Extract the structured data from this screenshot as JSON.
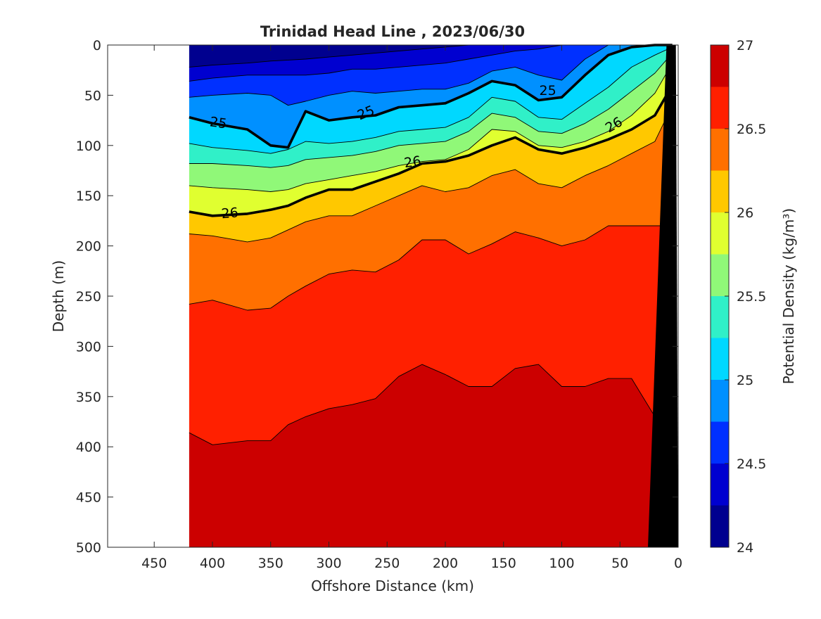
{
  "chart_data": {
    "type": "heatmap",
    "subtype": "filled-contour",
    "title": "Trinidad Head Line , 2023/06/30",
    "xlabel": "Offshore Distance (km)",
    "ylabel": "Depth (m)",
    "colorbar_label": "Potential Density (kg/m³)",
    "x_reversed": true,
    "y_reversed": true,
    "xlim": [
      0,
      490
    ],
    "ylim": [
      0,
      500
    ],
    "x_ticks": [
      450,
      400,
      350,
      300,
      250,
      200,
      150,
      100,
      50,
      0
    ],
    "x_tick_labels": [
      "450",
      "400",
      "350",
      "300",
      "250",
      "200",
      "150",
      "100",
      "50",
      "0"
    ],
    "y_ticks": [
      0,
      50,
      100,
      150,
      200,
      250,
      300,
      350,
      400,
      450,
      500
    ],
    "y_tick_labels": [
      "0",
      "50",
      "100",
      "150",
      "200",
      "250",
      "300",
      "350",
      "400",
      "450",
      "500"
    ],
    "colorbar": {
      "min": 24,
      "max": 27,
      "step": 0.25,
      "ticks": [
        24,
        24.5,
        25,
        25.5,
        26,
        26.5,
        27
      ],
      "tick_labels": [
        "24",
        "24.5",
        "25",
        "25.5",
        "26",
        "26.5",
        "27"
      ],
      "colors": [
        "#00008f",
        "#0000d0",
        "#0030ff",
        "#0090ff",
        "#00d8ff",
        "#30f0c8",
        "#90f878",
        "#e0ff30",
        "#ffc800",
        "#ff7000",
        "#ff2000",
        "#cc0000"
      ]
    },
    "data_extent_x": [
      0,
      420
    ],
    "isopycnal_x_km": [
      420,
      400,
      370,
      350,
      335,
      320,
      300,
      280,
      260,
      240,
      220,
      200,
      180,
      160,
      140,
      120,
      100,
      80,
      60,
      40,
      20,
      5
    ],
    "isopycnals": [
      {
        "level": 24.25,
        "depths": [
          22,
          20,
          18,
          16,
          15,
          14,
          12,
          10,
          8,
          6,
          4,
          2,
          0,
          0,
          0,
          0,
          0,
          0,
          0,
          0,
          0,
          0
        ]
      },
      {
        "level": 24.5,
        "depths": [
          36,
          33,
          30,
          30,
          30,
          30,
          28,
          24,
          24,
          22,
          20,
          18,
          14,
          10,
          6,
          4,
          0,
          0,
          0,
          0,
          0,
          0
        ]
      },
      {
        "level": 24.75,
        "depths": [
          52,
          50,
          48,
          50,
          60,
          56,
          50,
          46,
          48,
          46,
          44,
          44,
          38,
          26,
          22,
          30,
          35,
          14,
          0,
          0,
          0,
          0
        ]
      },
      {
        "level": 25.0,
        "depths": [
          72,
          78,
          84,
          100,
          102,
          66,
          75,
          72,
          70,
          62,
          60,
          58,
          48,
          36,
          40,
          55,
          52,
          30,
          10,
          2,
          0,
          0
        ]
      },
      {
        "level": 25.25,
        "depths": [
          98,
          102,
          105,
          108,
          104,
          96,
          98,
          96,
          92,
          86,
          84,
          82,
          72,
          52,
          56,
          72,
          74,
          58,
          42,
          22,
          10,
          2
        ]
      },
      {
        "level": 25.5,
        "depths": [
          118,
          118,
          120,
          122,
          120,
          114,
          112,
          110,
          106,
          100,
          98,
          96,
          86,
          68,
          72,
          86,
          88,
          78,
          64,
          46,
          28,
          8
        ]
      },
      {
        "level": 25.75,
        "depths": [
          140,
          142,
          144,
          146,
          144,
          138,
          134,
          130,
          126,
          120,
          116,
          114,
          104,
          84,
          86,
          100,
          102,
          96,
          86,
          70,
          48,
          18
        ]
      },
      {
        "level": 26.0,
        "depths": [
          166,
          170,
          168,
          164,
          160,
          152,
          144,
          144,
          136,
          128,
          118,
          116,
          110,
          100,
          92,
          104,
          108,
          102,
          94,
          84,
          70,
          40
        ]
      },
      {
        "level": 26.25,
        "depths": [
          188,
          190,
          196,
          192,
          184,
          176,
          170,
          170,
          160,
          150,
          140,
          146,
          142,
          130,
          124,
          138,
          142,
          130,
          120,
          108,
          96,
          60
        ]
      },
      {
        "level": 26.5,
        "depths": [
          258,
          254,
          264,
          262,
          250,
          240,
          228,
          224,
          226,
          214,
          194,
          194,
          208,
          198,
          186,
          192,
          200,
          194,
          180,
          180,
          180,
          180
        ]
      },
      {
        "level": 26.75,
        "depths": [
          386,
          398,
          394,
          394,
          378,
          370,
          362,
          358,
          352,
          330,
          318,
          328,
          340,
          340,
          322,
          318,
          340,
          340,
          332,
          332,
          370,
          420
        ]
      }
    ],
    "labeled_contours": [
      25,
      26
    ],
    "inline_labels": [
      {
        "text": "25",
        "x": 395,
        "y": 78,
        "angle": 8
      },
      {
        "text": "25",
        "x": 268,
        "y": 68,
        "angle": -22
      },
      {
        "text": "25",
        "x": 112,
        "y": 46,
        "angle": 0
      },
      {
        "text": "26",
        "x": 385,
        "y": 168,
        "angle": -5
      },
      {
        "text": "26",
        "x": 228,
        "y": 117,
        "angle": -8
      },
      {
        "text": "26",
        "x": 55,
        "y": 80,
        "angle": -30
      }
    ],
    "bathymetry_surface_x_km": [
      10,
      2
    ],
    "bathymetry_bottom_x_km": [
      26,
      0
    ]
  }
}
